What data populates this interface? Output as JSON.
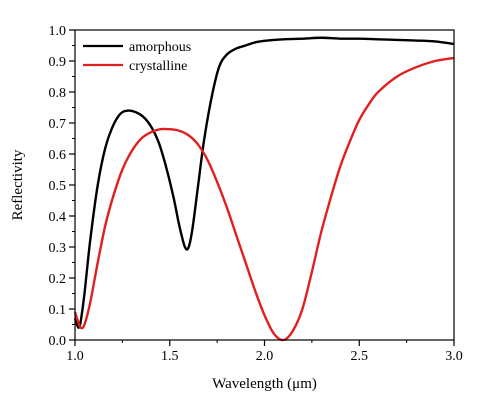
{
  "chart_data": {
    "type": "line",
    "xlabel": "Wavelength (μm)",
    "ylabel": "Reflectivity",
    "xlim": [
      1.0,
      3.0
    ],
    "ylim": [
      0.0,
      1.0
    ],
    "x_ticks": [
      "1.0",
      "1.5",
      "2.0",
      "2.5",
      "3.0"
    ],
    "y_ticks": [
      "0.0",
      "0.1",
      "0.2",
      "0.3",
      "0.4",
      "0.5",
      "0.6",
      "0.7",
      "0.8",
      "0.9",
      "1.0"
    ],
    "grid": false,
    "legend": "top-left",
    "series": [
      {
        "name": "amorphous",
        "color": "#000000",
        "points": [
          [
            1.0,
            0.07
          ],
          [
            1.01,
            0.05
          ],
          [
            1.02,
            0.04
          ],
          [
            1.03,
            0.06
          ],
          [
            1.05,
            0.15
          ],
          [
            1.08,
            0.32
          ],
          [
            1.12,
            0.5
          ],
          [
            1.16,
            0.62
          ],
          [
            1.2,
            0.69
          ],
          [
            1.24,
            0.73
          ],
          [
            1.28,
            0.74
          ],
          [
            1.32,
            0.735
          ],
          [
            1.36,
            0.72
          ],
          [
            1.4,
            0.69
          ],
          [
            1.44,
            0.64
          ],
          [
            1.48,
            0.56
          ],
          [
            1.52,
            0.46
          ],
          [
            1.55,
            0.37
          ],
          [
            1.58,
            0.3
          ],
          [
            1.6,
            0.3
          ],
          [
            1.62,
            0.36
          ],
          [
            1.65,
            0.5
          ],
          [
            1.68,
            0.64
          ],
          [
            1.72,
            0.78
          ],
          [
            1.76,
            0.88
          ],
          [
            1.8,
            0.92
          ],
          [
            1.85,
            0.94
          ],
          [
            1.9,
            0.95
          ],
          [
            1.95,
            0.96
          ],
          [
            2.0,
            0.965
          ],
          [
            2.1,
            0.97
          ],
          [
            2.2,
            0.972
          ],
          [
            2.3,
            0.975
          ],
          [
            2.4,
            0.972
          ],
          [
            2.5,
            0.972
          ],
          [
            2.6,
            0.97
          ],
          [
            2.7,
            0.968
          ],
          [
            2.8,
            0.966
          ],
          [
            2.9,
            0.963
          ],
          [
            3.0,
            0.955
          ]
        ]
      },
      {
        "name": "crystalline",
        "color": "#e02020",
        "points": [
          [
            1.0,
            0.09
          ],
          [
            1.01,
            0.07
          ],
          [
            1.03,
            0.04
          ],
          [
            1.05,
            0.05
          ],
          [
            1.08,
            0.12
          ],
          [
            1.12,
            0.25
          ],
          [
            1.16,
            0.37
          ],
          [
            1.2,
            0.46
          ],
          [
            1.25,
            0.55
          ],
          [
            1.3,
            0.61
          ],
          [
            1.35,
            0.65
          ],
          [
            1.4,
            0.67
          ],
          [
            1.45,
            0.68
          ],
          [
            1.5,
            0.68
          ],
          [
            1.55,
            0.675
          ],
          [
            1.6,
            0.66
          ],
          [
            1.65,
            0.63
          ],
          [
            1.7,
            0.58
          ],
          [
            1.75,
            0.51
          ],
          [
            1.8,
            0.43
          ],
          [
            1.85,
            0.34
          ],
          [
            1.9,
            0.25
          ],
          [
            1.95,
            0.16
          ],
          [
            2.0,
            0.08
          ],
          [
            2.05,
            0.02
          ],
          [
            2.1,
            0.0
          ],
          [
            2.15,
            0.03
          ],
          [
            2.2,
            0.1
          ],
          [
            2.25,
            0.22
          ],
          [
            2.3,
            0.35
          ],
          [
            2.35,
            0.46
          ],
          [
            2.4,
            0.56
          ],
          [
            2.45,
            0.64
          ],
          [
            2.5,
            0.71
          ],
          [
            2.55,
            0.76
          ],
          [
            2.6,
            0.8
          ],
          [
            2.7,
            0.85
          ],
          [
            2.8,
            0.88
          ],
          [
            2.9,
            0.9
          ],
          [
            3.0,
            0.91
          ]
        ]
      }
    ]
  }
}
